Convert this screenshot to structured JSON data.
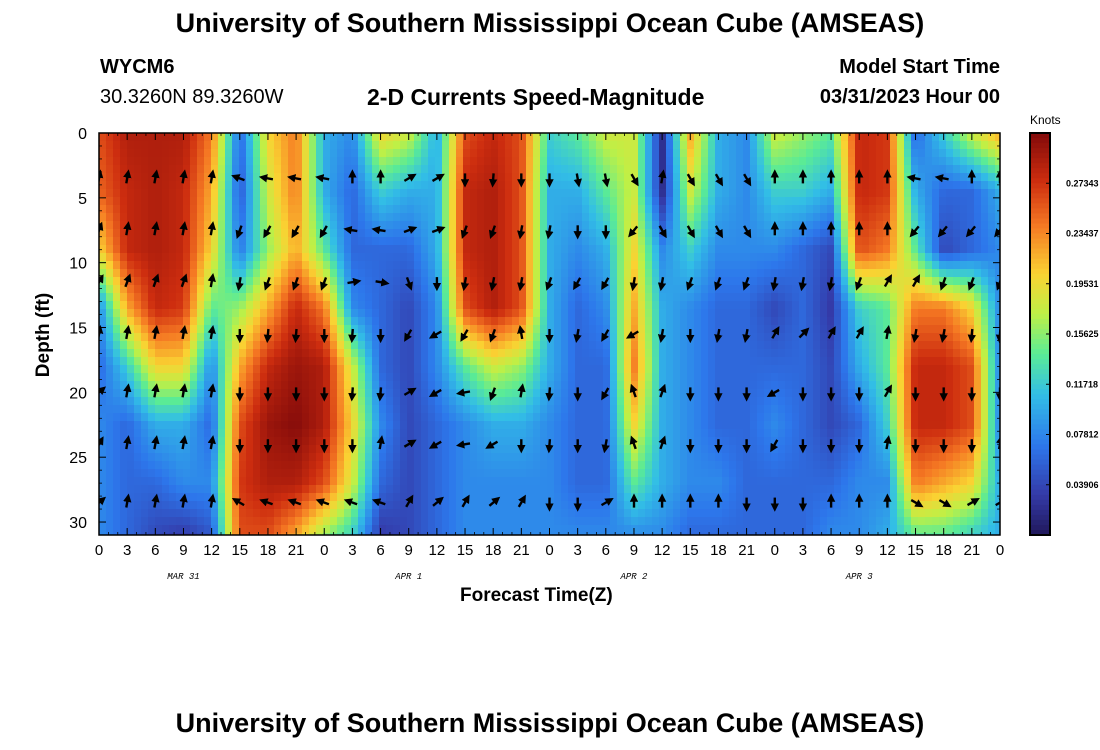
{
  "header": {
    "title": "University of Southern Mississippi Ocean Cube (AMSEAS)",
    "station": "WYCM6",
    "coordinates": "30.3260N  89.3260W",
    "subtitle": "2-D Currents Speed-Magnitude",
    "model_start_label": "Model Start Time",
    "model_start_value": "03/31/2023 Hour 00"
  },
  "footer": {
    "title": "University of Southern Mississippi Ocean Cube (AMSEAS)"
  },
  "chart_data": {
    "type": "heatmap",
    "title": "2-D Currents Speed-Magnitude",
    "xlabel": "Forecast Time(Z)",
    "ylabel": "Depth (ft)",
    "x_tick_labels": [
      "0",
      "3",
      "6",
      "9",
      "12",
      "15",
      "18",
      "21",
      "0",
      "3",
      "6",
      "9",
      "12",
      "15",
      "18",
      "21",
      "0",
      "3",
      "6",
      "9",
      "12",
      "15",
      "18",
      "21",
      "0",
      "3",
      "6",
      "9",
      "12",
      "15",
      "18",
      "21",
      "0"
    ],
    "date_labels": [
      {
        "label": "MAR 31",
        "hour": 9
      },
      {
        "label": "APR 1",
        "hour": 33
      },
      {
        "label": "APR 2",
        "hour": 57
      },
      {
        "label": "APR 3",
        "hour": 81
      }
    ],
    "xlim_hours": [
      0,
      96
    ],
    "y_ticks": [
      0,
      5,
      10,
      15,
      20,
      25,
      30
    ],
    "ylim": [
      0,
      31
    ],
    "y_inverted": true,
    "colorbar": {
      "label": "Knots",
      "ticks": [
        "0.03906",
        "0.07812",
        "0.11718",
        "0.15625",
        "0.19531",
        "0.23437",
        "0.27343"
      ],
      "range": [
        0,
        0.3125
      ],
      "colormap": "jet"
    },
    "vector_rows_depth_ft": [
      3.5,
      7.5,
      11.5,
      15.5,
      20,
      24,
      28.5
    ],
    "vector_columns_hours": [
      0,
      3,
      6,
      9,
      12,
      15,
      18,
      21,
      24,
      27,
      30,
      33,
      36,
      39,
      42,
      45,
      48,
      51,
      54,
      57,
      60,
      63,
      66,
      69,
      72,
      75,
      78,
      81,
      84,
      87,
      90,
      93,
      96
    ],
    "speed_rows_knots": [
      [
        0.26,
        0.29,
        0.29,
        0.29,
        0.24,
        0.06,
        0.2,
        0.24,
        0.1,
        0.08,
        0.2,
        0.18,
        0.1,
        0.26,
        0.28,
        0.26,
        0.12,
        0.14,
        0.18,
        0.18,
        0.02,
        0.22,
        0.1,
        0.08,
        0.18,
        0.16,
        0.14,
        0.28,
        0.27,
        0.06,
        0.12,
        0.18,
        0.22
      ],
      [
        0.25,
        0.28,
        0.29,
        0.28,
        0.22,
        0.05,
        0.18,
        0.24,
        0.1,
        0.06,
        0.12,
        0.1,
        0.1,
        0.28,
        0.29,
        0.26,
        0.1,
        0.1,
        0.14,
        0.18,
        0.02,
        0.18,
        0.1,
        0.08,
        0.12,
        0.12,
        0.1,
        0.28,
        0.27,
        0.1,
        0.06,
        0.06,
        0.1
      ],
      [
        0.2,
        0.28,
        0.29,
        0.28,
        0.2,
        0.07,
        0.16,
        0.22,
        0.14,
        0.06,
        0.06,
        0.06,
        0.1,
        0.28,
        0.29,
        0.26,
        0.1,
        0.08,
        0.1,
        0.2,
        0.08,
        0.12,
        0.08,
        0.08,
        0.08,
        0.06,
        0.04,
        0.26,
        0.24,
        0.14,
        0.04,
        0.06,
        0.08
      ],
      [
        0.08,
        0.22,
        0.28,
        0.27,
        0.14,
        0.16,
        0.22,
        0.28,
        0.24,
        0.08,
        0.06,
        0.04,
        0.08,
        0.26,
        0.29,
        0.26,
        0.1,
        0.06,
        0.08,
        0.22,
        0.1,
        0.08,
        0.06,
        0.06,
        0.04,
        0.06,
        0.03,
        0.12,
        0.14,
        0.24,
        0.24,
        0.2,
        0.08
      ],
      [
        0.06,
        0.12,
        0.2,
        0.2,
        0.08,
        0.22,
        0.28,
        0.3,
        0.29,
        0.18,
        0.06,
        0.04,
        0.08,
        0.14,
        0.18,
        0.16,
        0.1,
        0.06,
        0.06,
        0.24,
        0.1,
        0.08,
        0.06,
        0.06,
        0.06,
        0.06,
        0.04,
        0.1,
        0.14,
        0.28,
        0.28,
        0.26,
        0.08
      ],
      [
        0.08,
        0.06,
        0.1,
        0.1,
        0.06,
        0.26,
        0.3,
        0.31,
        0.29,
        0.2,
        0.08,
        0.04,
        0.06,
        0.08,
        0.1,
        0.1,
        0.08,
        0.06,
        0.06,
        0.2,
        0.1,
        0.08,
        0.06,
        0.06,
        0.08,
        0.06,
        0.04,
        0.06,
        0.12,
        0.28,
        0.28,
        0.26,
        0.08
      ],
      [
        0.08,
        0.06,
        0.06,
        0.08,
        0.08,
        0.27,
        0.29,
        0.29,
        0.26,
        0.18,
        0.06,
        0.04,
        0.06,
        0.08,
        0.08,
        0.08,
        0.08,
        0.06,
        0.06,
        0.14,
        0.1,
        0.08,
        0.08,
        0.06,
        0.06,
        0.06,
        0.06,
        0.08,
        0.08,
        0.24,
        0.22,
        0.2,
        0.1
      ],
      [
        0.08,
        0.06,
        0.04,
        0.03,
        0.05,
        0.26,
        0.26,
        0.22,
        0.16,
        0.12,
        0.03,
        0.04,
        0.06,
        0.08,
        0.08,
        0.08,
        0.08,
        0.08,
        0.08,
        0.08,
        0.08,
        0.06,
        0.06,
        0.06,
        0.06,
        0.06,
        0.08,
        0.08,
        0.1,
        0.14,
        0.14,
        0.12,
        0.1
      ]
    ],
    "speed_rows_depth_ft": [
      0,
      4.5,
      9,
      13.5,
      18,
      22.5,
      27,
      31
    ],
    "arrow_angles_deg": [
      [
        -80,
        -80,
        -80,
        -80,
        -80,
        200,
        190,
        190,
        190,
        -90,
        -90,
        -30,
        -30,
        90,
        95,
        90,
        90,
        80,
        80,
        60,
        -80,
        60,
        60,
        60,
        -90,
        -90,
        -90,
        -90,
        -90,
        190,
        190,
        -90,
        -90
      ],
      [
        -70,
        -80,
        -80,
        -80,
        -80,
        110,
        120,
        120,
        120,
        190,
        190,
        -20,
        -20,
        110,
        110,
        100,
        100,
        90,
        90,
        130,
        60,
        60,
        60,
        60,
        -90,
        -90,
        -90,
        -90,
        -90,
        130,
        130,
        130,
        130
      ],
      [
        -60,
        -70,
        -70,
        -70,
        -80,
        100,
        110,
        110,
        110,
        -10,
        10,
        70,
        90,
        100,
        100,
        100,
        110,
        120,
        120,
        100,
        100,
        110,
        110,
        110,
        100,
        100,
        100,
        110,
        -60,
        -60,
        110,
        110,
        110
      ],
      [
        -80,
        -80,
        -80,
        -80,
        -80,
        90,
        95,
        95,
        90,
        95,
        90,
        120,
        150,
        120,
        110,
        -100,
        90,
        100,
        120,
        150,
        100,
        90,
        100,
        100,
        -60,
        -45,
        -60,
        -60,
        -80,
        100,
        100,
        95,
        95
      ],
      [
        -40,
        -80,
        -80,
        -80,
        -80,
        90,
        90,
        90,
        90,
        95,
        95,
        -30,
        150,
        170,
        110,
        -80,
        95,
        90,
        120,
        -110,
        -70,
        90,
        90,
        90,
        150,
        90,
        90,
        90,
        -60,
        90,
        90,
        90,
        90
      ],
      [
        -60,
        -80,
        -80,
        -80,
        -80,
        90,
        90,
        90,
        90,
        90,
        -80,
        -30,
        150,
        170,
        150,
        90,
        95,
        90,
        100,
        -110,
        -70,
        90,
        90,
        90,
        120,
        90,
        90,
        90,
        -80,
        90,
        90,
        90,
        -80
      ],
      [
        -40,
        -80,
        -80,
        -80,
        -80,
        210,
        200,
        200,
        200,
        200,
        200,
        -60,
        -40,
        -60,
        -40,
        -60,
        90,
        90,
        -30,
        -90,
        -90,
        -90,
        -90,
        90,
        90,
        90,
        -90,
        -90,
        -90,
        30,
        30,
        -30,
        -30
      ]
    ]
  }
}
